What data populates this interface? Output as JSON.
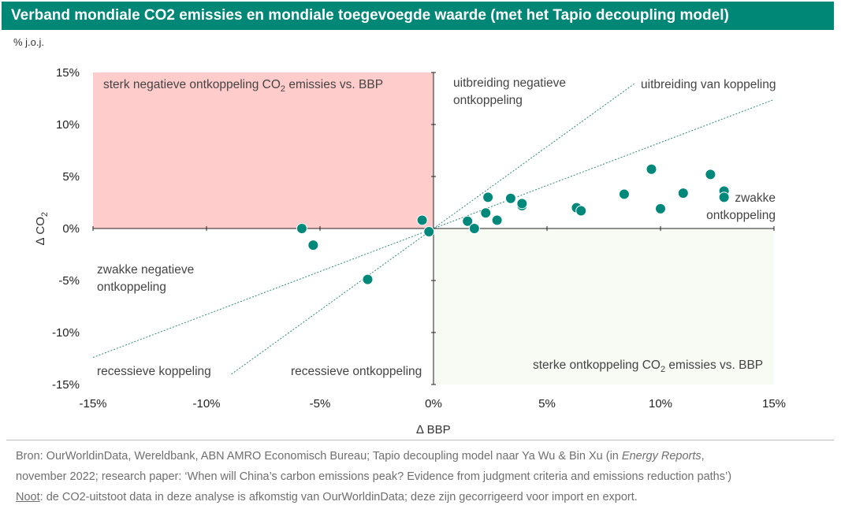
{
  "title": "Verband mondiale CO2 emissies en mondiale toegevoegde waarde (met het Tapio decoupling model)",
  "unit_label": "% j.o.j.",
  "colors": {
    "header_bg": "#008776",
    "point": "#00897B",
    "quadrant_top_left": "#FFCCCC",
    "quadrant_bottom_right": "#F7FBF3",
    "divider_line": "#2E8B7A"
  },
  "chart_data": {
    "type": "scatter",
    "xlabel": "∆ BBP",
    "ylabel": "∆ CO",
    "ylabel_subscript": "2",
    "xlim": [
      -15,
      15
    ],
    "ylim": [
      -15,
      15
    ],
    "x_ticks": [
      "-15%",
      "-10%",
      "-5%",
      "0%",
      "5%",
      "10%",
      "15%"
    ],
    "y_ticks": [
      "15%",
      "10%",
      "5%",
      "0%",
      "-5%",
      "-10%",
      "-15%"
    ],
    "divider_lines": [
      {
        "x": [
          -8.9,
          8.9
        ],
        "y": [
          -14.0,
          14.0
        ]
      },
      {
        "x": [
          -15.0,
          15.0
        ],
        "y": [
          -12.4,
          12.4
        ]
      }
    ],
    "region_labels": {
      "top_left": {
        "text": "sterk negatieve ontkoppeling CO",
        "sub": "2",
        "tail": " emissies vs. BBP"
      },
      "top_mid": [
        "uitbreiding negatieve",
        "ontkoppeling"
      ],
      "top_right": "uitbreiding  van koppeling",
      "right": [
        "zwakke",
        "ontkoppeling"
      ],
      "left": [
        "zwakke negatieve",
        "ontkoppeling"
      ],
      "bottom_left": "recessieve koppeling",
      "bottom_mid": "recessieve ontkoppeling",
      "bottom_right": {
        "text": "sterke ontkoppeling CO",
        "sub": "2",
        "tail": " emissies vs. BBP"
      }
    },
    "points": [
      {
        "x": -5.8,
        "y": 0.0
      },
      {
        "x": -5.3,
        "y": -1.6
      },
      {
        "x": -2.9,
        "y": -4.9
      },
      {
        "x": -0.5,
        "y": 0.8
      },
      {
        "x": -0.2,
        "y": -0.3
      },
      {
        "x": 1.5,
        "y": 0.7
      },
      {
        "x": 1.8,
        "y": 0.0
      },
      {
        "x": 2.3,
        "y": 1.5
      },
      {
        "x": 2.4,
        "y": 3.0
      },
      {
        "x": 2.8,
        "y": 0.8
      },
      {
        "x": 3.4,
        "y": 2.9
      },
      {
        "x": 3.9,
        "y": 2.2
      },
      {
        "x": 3.9,
        "y": 2.4
      },
      {
        "x": 6.3,
        "y": 2.0
      },
      {
        "x": 6.5,
        "y": 1.7
      },
      {
        "x": 8.4,
        "y": 3.3
      },
      {
        "x": 9.6,
        "y": 5.7
      },
      {
        "x": 10.0,
        "y": 1.9
      },
      {
        "x": 11.0,
        "y": 3.4
      },
      {
        "x": 12.2,
        "y": 5.2
      },
      {
        "x": 12.8,
        "y": 3.6
      },
      {
        "x": 12.8,
        "y": 3.0
      }
    ]
  },
  "source": {
    "line1_prefix": "Bron: OurWorldinData, Wereldbank, ABN AMRO Economisch Bureau; Tapio decoupling model naar Ya Wu & Bin Xu (in ",
    "line1_italic": "Energy Reports",
    "line1_suffix": ",",
    "line2": "november 2022; research paper: ‘When will China’s carbon emissions peak? Evidence from judgment criteria and emissions reduction paths’)",
    "note_label": "Noot",
    "note_text": ": de CO2-uitstoot data in deze analyse is afkomstig van OurWorldinData; deze zijn gecorrigeerd voor import en export."
  }
}
